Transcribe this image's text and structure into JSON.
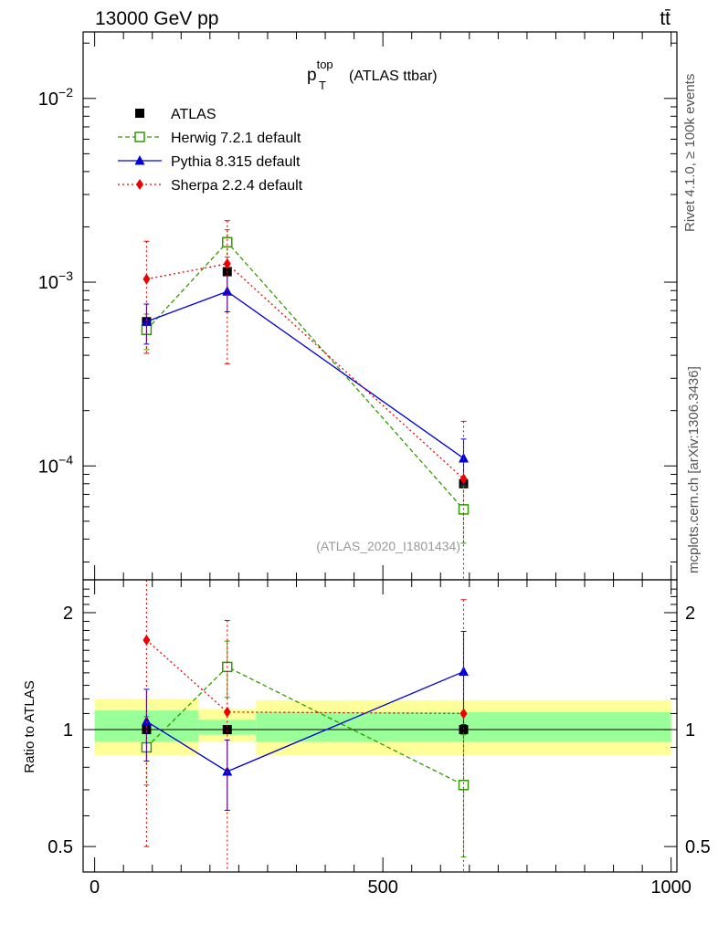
{
  "header": {
    "energy_label": "13000 GeV pp",
    "process_label": "tt̄"
  },
  "side_labels": {
    "rivet": "Rivet 4.1.0, ≥ 100k events",
    "mcplots": "mcplots.cern.ch [arXiv:1306.3436]"
  },
  "chart_data": {
    "type": "scatter",
    "title_main": "p",
    "title_sup": "top",
    "title_sub": "T",
    "title_rest": "(ATLAS ttbar)",
    "watermark": "(ATLAS_2020_I1801434)",
    "xlim": [
      -20,
      1010
    ],
    "x_ticks": [
      0,
      500,
      1000
    ],
    "x_tick_labels": [
      "0",
      "500",
      "1000"
    ],
    "main": {
      "yscale": "log",
      "ylim": [
        2.4e-05,
        0.023
      ],
      "y_ticks": [
        0.0001,
        0.001,
        0.01
      ],
      "y_tick_labels": [
        {
          "base": "10",
          "exp": "−4"
        },
        {
          "base": "10",
          "exp": "−3"
        },
        {
          "base": "10",
          "exp": "−2"
        }
      ]
    },
    "ratio": {
      "ylabel": "Ratio to ATLAS",
      "yscale": "log",
      "ylim": [
        0.43,
        2.43
      ],
      "y_ticks": [
        0.5,
        1,
        2
      ],
      "y_tick_labels": [
        "0.5",
        "1",
        "2"
      ],
      "bands": [
        {
          "xlo": 0,
          "xhi": 180,
          "inner": [
            0.93,
            1.12
          ],
          "outer": [
            0.86,
            1.2
          ]
        },
        {
          "xlo": 180,
          "xhi": 280,
          "inner": [
            0.97,
            1.06
          ],
          "outer": [
            0.93,
            1.13
          ]
        },
        {
          "xlo": 280,
          "xhi": 1000,
          "inner": [
            0.93,
            1.11
          ],
          "outer": [
            0.86,
            1.19
          ]
        }
      ]
    },
    "series": [
      {
        "name": "ATLAS",
        "legend": "ATLAS",
        "color": "#000000",
        "marker": "square-filled",
        "line": "none",
        "x": [
          90,
          230,
          640
        ],
        "y": [
          0.00061,
          0.00114,
          8e-05
        ],
        "yerr_lo": [
          0.0,
          0.0,
          0.0
        ],
        "yerr_hi": [
          0.0,
          0.0,
          0.0
        ],
        "ratio": [
          1.0,
          1.0,
          1.0
        ],
        "ratio_err_lo": [
          0.0,
          0.0,
          0.0
        ],
        "ratio_err_hi": [
          0.0,
          0.0,
          0.0
        ]
      },
      {
        "name": "Herwig",
        "legend": "Herwig 7.2.1 default",
        "color": "#339900",
        "marker": "square-open",
        "line": "dashed",
        "x": [
          90,
          230,
          640
        ],
        "y": [
          0.00055,
          0.00165,
          5.8e-05
        ],
        "yerr_lo": [
          0.00012,
          0.00028,
          2e-05
        ],
        "yerr_hi": [
          0.00012,
          0.00028,
          2e-05
        ],
        "ratio": [
          0.9,
          1.45,
          0.72
        ],
        "ratio_err_lo": [
          0.18,
          0.24,
          0.25
        ],
        "ratio_err_hi": [
          0.18,
          0.24,
          0.25
        ]
      },
      {
        "name": "Pythia",
        "legend": "Pythia 8.315 default",
        "color": "#0000dd",
        "marker": "triangle",
        "line": "solid",
        "x": [
          90,
          230,
          640
        ],
        "y": [
          0.00061,
          0.00089,
          0.00011
        ],
        "yerr_lo": [
          0.00015,
          0.0002,
          3e-05
        ],
        "yerr_hi": [
          0.00015,
          0.0002,
          3e-05
        ],
        "ratio": [
          1.05,
          0.78,
          1.41
        ],
        "ratio_err_lo": [
          0.22,
          0.16,
          0.38
        ],
        "ratio_err_hi": [
          0.22,
          0.16,
          0.38
        ]
      },
      {
        "name": "Sherpa",
        "legend": "Sherpa 2.2.4 default",
        "color": "#ee0000",
        "marker": "diamond",
        "line": "dotted",
        "x": [
          90,
          230,
          640
        ],
        "y": [
          0.00104,
          0.00126,
          8.5e-05
        ],
        "yerr_lo": [
          0.00063,
          0.0009,
          9e-05
        ],
        "yerr_hi": [
          0.00063,
          0.0009,
          9e-05
        ],
        "ratio": [
          1.7,
          1.11,
          1.1
        ],
        "ratio_err_lo": [
          1.2,
          0.8,
          1.06
        ],
        "ratio_err_hi": [
          1.2,
          0.8,
          1.06
        ]
      }
    ]
  }
}
